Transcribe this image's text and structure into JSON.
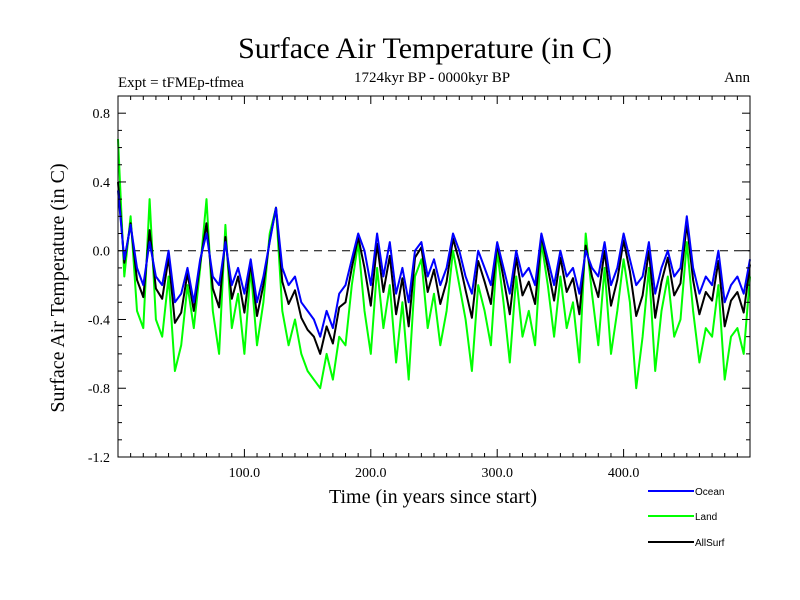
{
  "chart_data": {
    "type": "line",
    "title": "Surface Air Temperature (in C)",
    "subtitle": "1724kyr BP - 0000kyr BP",
    "left_label": "Expt = tFMEp-tfmea",
    "right_label": "Ann",
    "xlabel": "Time (in years since start)",
    "ylabel": "Surface Air Temperature (in C)",
    "xlim": [
      0,
      500
    ],
    "ylim": [
      -1.2,
      0.9
    ],
    "x_ticks": [
      100,
      200,
      300,
      400
    ],
    "x_tick_labels": [
      "100.0",
      "200.0",
      "300.0",
      "400.0"
    ],
    "y_ticks": [
      -1.2,
      -0.8,
      -0.4,
      0.0,
      0.4,
      0.8
    ],
    "y_tick_labels": [
      "-1.2",
      "-0.8",
      "-0.4",
      "0.0",
      "0.4",
      "0.8"
    ],
    "reference_line": 0.0,
    "legend_position": "bottom-right",
    "x": [
      0,
      5,
      10,
      15,
      20,
      25,
      30,
      35,
      40,
      45,
      50,
      55,
      60,
      65,
      70,
      75,
      80,
      85,
      90,
      95,
      100,
      105,
      110,
      115,
      120,
      125,
      130,
      135,
      140,
      145,
      150,
      155,
      160,
      165,
      170,
      175,
      180,
      185,
      190,
      195,
      200,
      205,
      210,
      215,
      220,
      225,
      230,
      235,
      240,
      245,
      250,
      255,
      260,
      265,
      270,
      275,
      280,
      285,
      290,
      295,
      300,
      305,
      310,
      315,
      320,
      325,
      330,
      335,
      340,
      345,
      350,
      355,
      360,
      365,
      370,
      375,
      380,
      385,
      390,
      395,
      400,
      405,
      410,
      415,
      420,
      425,
      430,
      435,
      440,
      445,
      450,
      455,
      460,
      465,
      470,
      475,
      480,
      485,
      490,
      495,
      500
    ],
    "series": [
      {
        "name": "Ocean",
        "color": "#0000ff",
        "values": [
          0.35,
          -0.05,
          0.15,
          -0.1,
          -0.2,
          0.05,
          -0.15,
          -0.2,
          0.0,
          -0.3,
          -0.25,
          -0.1,
          -0.3,
          -0.05,
          0.1,
          -0.15,
          -0.2,
          0.05,
          -0.2,
          -0.1,
          -0.25,
          -0.05,
          -0.3,
          -0.15,
          0.05,
          0.25,
          -0.1,
          -0.2,
          -0.15,
          -0.3,
          -0.35,
          -0.4,
          -0.5,
          -0.35,
          -0.45,
          -0.25,
          -0.2,
          -0.05,
          0.1,
          0.0,
          -0.2,
          0.1,
          -0.15,
          0.05,
          -0.25,
          -0.1,
          -0.3,
          0.0,
          0.05,
          -0.15,
          -0.05,
          -0.2,
          -0.1,
          0.1,
          0.0,
          -0.15,
          -0.25,
          0.0,
          -0.1,
          -0.2,
          0.05,
          -0.1,
          -0.25,
          0.0,
          -0.15,
          -0.1,
          -0.2,
          0.1,
          -0.05,
          -0.2,
          0.0,
          -0.15,
          -0.1,
          -0.25,
          0.0,
          -0.1,
          -0.15,
          0.05,
          -0.2,
          -0.1,
          0.1,
          -0.05,
          -0.2,
          -0.15,
          0.05,
          -0.25,
          -0.1,
          0.0,
          -0.15,
          -0.1,
          0.2,
          -0.1,
          -0.25,
          -0.15,
          -0.2,
          0.0,
          -0.3,
          -0.2,
          -0.15,
          -0.25,
          -0.05
        ]
      },
      {
        "name": "Land",
        "color": "#00ff00",
        "values": [
          0.65,
          -0.15,
          0.2,
          -0.35,
          -0.45,
          0.3,
          -0.4,
          -0.5,
          -0.15,
          -0.7,
          -0.55,
          -0.2,
          -0.45,
          -0.1,
          0.3,
          -0.35,
          -0.6,
          0.15,
          -0.45,
          -0.25,
          -0.6,
          -0.1,
          -0.55,
          -0.3,
          0.1,
          0.25,
          -0.35,
          -0.55,
          -0.4,
          -0.6,
          -0.7,
          -0.75,
          -0.8,
          -0.6,
          -0.75,
          -0.5,
          -0.55,
          -0.2,
          0.05,
          -0.35,
          -0.6,
          -0.1,
          -0.45,
          -0.2,
          -0.65,
          -0.3,
          -0.75,
          -0.15,
          -0.05,
          -0.45,
          -0.25,
          -0.55,
          -0.35,
          0.0,
          -0.2,
          -0.4,
          -0.7,
          -0.2,
          -0.35,
          -0.55,
          0.0,
          -0.3,
          -0.65,
          -0.15,
          -0.5,
          -0.35,
          -0.55,
          0.05,
          -0.2,
          -0.5,
          -0.15,
          -0.45,
          -0.3,
          -0.65,
          0.1,
          -0.25,
          -0.55,
          -0.1,
          -0.6,
          -0.35,
          -0.05,
          -0.3,
          -0.8,
          -0.5,
          -0.1,
          -0.7,
          -0.35,
          -0.15,
          -0.5,
          -0.4,
          0.05,
          -0.35,
          -0.65,
          -0.45,
          -0.5,
          -0.2,
          -0.75,
          -0.5,
          -0.45,
          -0.6,
          -0.15
        ]
      },
      {
        "name": "AllSurf",
        "color": "#000000",
        "values": [
          0.4,
          -0.07,
          0.16,
          -0.17,
          -0.27,
          0.12,
          -0.22,
          -0.28,
          -0.04,
          -0.42,
          -0.36,
          -0.13,
          -0.35,
          -0.07,
          0.16,
          -0.22,
          -0.33,
          0.08,
          -0.28,
          -0.15,
          -0.36,
          -0.07,
          -0.38,
          -0.2,
          0.06,
          0.25,
          -0.18,
          -0.31,
          -0.23,
          -0.39,
          -0.46,
          -0.5,
          -0.6,
          -0.44,
          -0.54,
          -0.33,
          -0.3,
          -0.1,
          0.08,
          -0.1,
          -0.32,
          0.04,
          -0.24,
          -0.03,
          -0.37,
          -0.16,
          -0.44,
          -0.04,
          0.02,
          -0.24,
          -0.11,
          -0.31,
          -0.18,
          0.07,
          -0.06,
          -0.23,
          -0.39,
          -0.06,
          -0.18,
          -0.31,
          0.04,
          -0.16,
          -0.37,
          -0.04,
          -0.26,
          -0.18,
          -0.31,
          0.09,
          -0.1,
          -0.29,
          -0.04,
          -0.24,
          -0.16,
          -0.37,
          0.03,
          -0.15,
          -0.27,
          0.0,
          -0.32,
          -0.17,
          0.06,
          -0.12,
          -0.38,
          -0.26,
          0.0,
          -0.39,
          -0.18,
          -0.04,
          -0.26,
          -0.19,
          0.16,
          -0.17,
          -0.37,
          -0.24,
          -0.29,
          -0.06,
          -0.44,
          -0.29,
          -0.24,
          -0.36,
          -0.08
        ]
      }
    ]
  }
}
